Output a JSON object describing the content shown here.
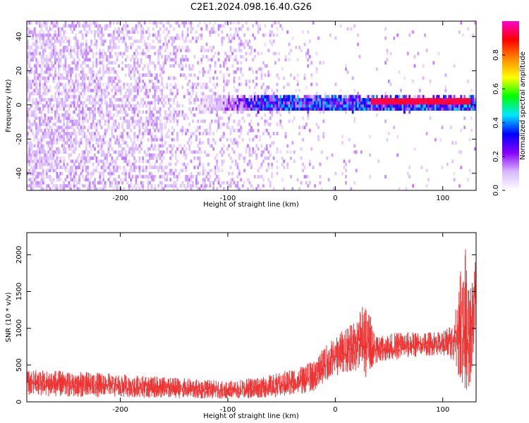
{
  "title": "C2E1.2024.098.16.40.G26",
  "chart_data": [
    {
      "type": "heatmap",
      "xlabel": "Height of straight line (km)",
      "ylabel": "Frequency (Hz)",
      "xlim": [
        -287,
        131
      ],
      "ylim": [
        -50,
        49
      ],
      "xticks": [
        -200,
        -100,
        0,
        100
      ],
      "yticks": [
        -40,
        -20,
        0,
        20,
        40
      ],
      "xtick_labels": [
        "-200",
        "-100",
        "0",
        "100"
      ],
      "ytick_labels": [
        "-40",
        "-20",
        "0",
        "20",
        "40"
      ],
      "colorbar": {
        "label": "Normalized spectral amplitude",
        "range": [
          0,
          1
        ],
        "ticks": [
          0.0,
          0.2,
          0.4,
          0.6,
          0.8
        ],
        "tick_labels": [
          "0.0",
          "0.2",
          "0.4",
          "0.6",
          "0.8"
        ],
        "colors": [
          "#ffffff",
          "#d9b8ff",
          "#8800ff",
          "#0000ff",
          "#00e5ff",
          "#00ff00",
          "#ffff00",
          "#ff8800",
          "#ff0000",
          "#ff00cc"
        ]
      },
      "features": {
        "background_noise": {
          "x": [
            -287,
            -10
          ],
          "y": [
            -50,
            49
          ],
          "level": 0.1
        },
        "signal_band": {
          "x_start": -130,
          "x_end": 131,
          "center_freq": 0,
          "half_width": 4,
          "level": 0.35
        },
        "tone_line": {
          "x_start": 32,
          "x_end": 125,
          "freq": 1.5,
          "level": 0.9
        }
      }
    },
    {
      "type": "area",
      "xlabel": "Height of straight line (km)",
      "ylabel": "SNR (10 * v/v)",
      "xlim": [
        -287,
        131
      ],
      "ylim": [
        0,
        2300
      ],
      "xticks": [
        -200,
        -100,
        0,
        100
      ],
      "yticks": [
        0,
        500,
        1000,
        1500,
        2000
      ],
      "xtick_labels": [
        "-200",
        "-100",
        "0",
        "100"
      ],
      "ytick_labels": [
        "0",
        "500",
        "1000",
        "1500",
        "2000"
      ],
      "color": "#ee3333",
      "envelope": {
        "x": [
          -287,
          -250,
          -200,
          -150,
          -100,
          -60,
          -40,
          -20,
          -10,
          0,
          10,
          20,
          30,
          35,
          40,
          60,
          80,
          100,
          110,
          115,
          120,
          125,
          128,
          131
        ],
        "low": [
          80,
          70,
          60,
          50,
          40,
          60,
          80,
          150,
          250,
          350,
          400,
          420,
          300,
          500,
          550,
          580,
          620,
          640,
          500,
          300,
          100,
          200,
          600,
          1000
        ],
        "high": [
          450,
          420,
          380,
          330,
          280,
          370,
          450,
          550,
          750,
          900,
          1000,
          1200,
          1400,
          1000,
          900,
          950,
          950,
          970,
          1100,
          1700,
          2300,
          1500,
          2000,
          2150
        ]
      }
    }
  ]
}
